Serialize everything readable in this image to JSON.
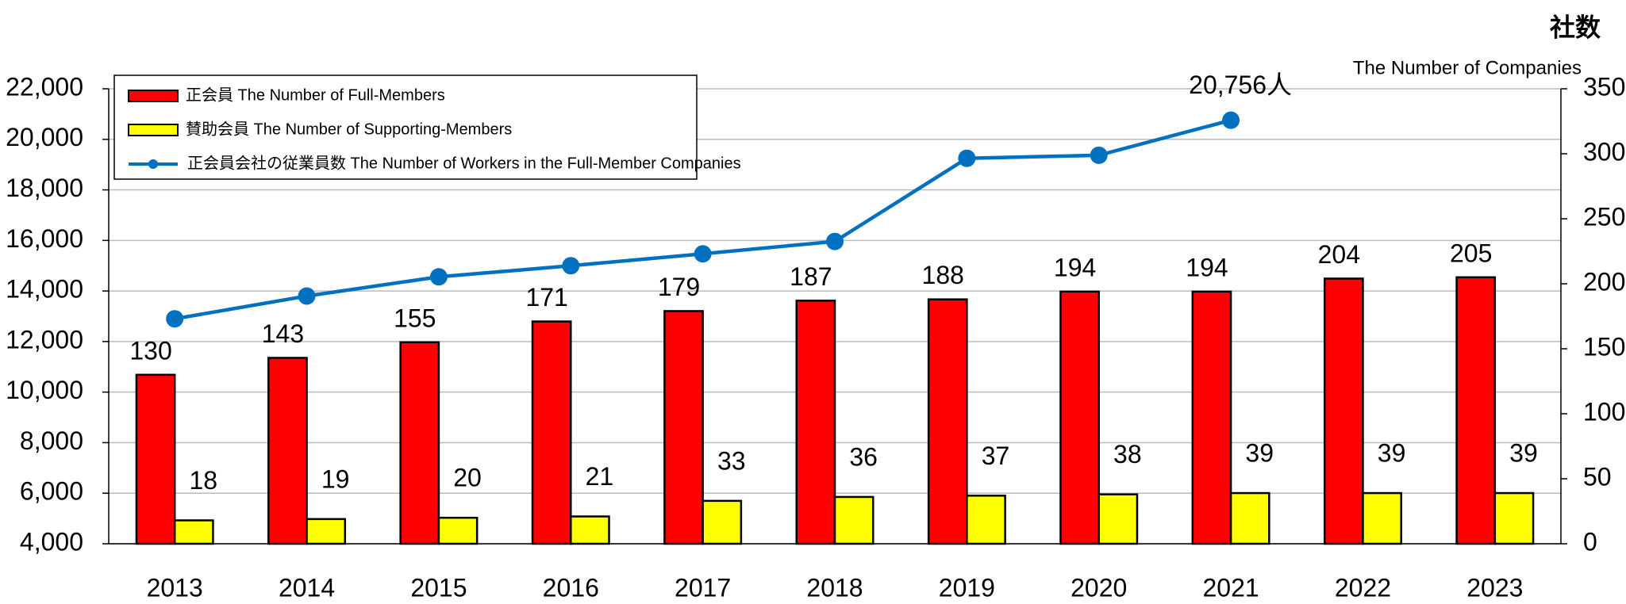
{
  "chart_data": {
    "type": "bar",
    "y2_title": "社数",
    "y2_subtitle": "The Number of Companies",
    "categories": [
      "2013",
      "2014",
      "2015",
      "2016",
      "2017",
      "2018",
      "2019",
      "2020",
      "2021",
      "2022",
      "2023"
    ],
    "series": [
      {
        "name": "正会員 The Number of Full-Members",
        "type": "bar",
        "axis": "y2",
        "color": "#ff0000",
        "values": [
          130,
          143,
          155,
          171,
          179,
          187,
          188,
          194,
          194,
          204,
          205
        ]
      },
      {
        "name": "賛助会員 The Number of Supporting-Members",
        "type": "bar",
        "axis": "y2",
        "color": "#ffff00",
        "values": [
          18,
          19,
          20,
          21,
          33,
          36,
          37,
          38,
          39,
          39,
          39
        ]
      },
      {
        "name": "正会員会社の従業員数 The Number of Workers in the Full-Member Companies",
        "type": "line",
        "color": "#0070c0",
        "values": [
          12900,
          13800,
          14560,
          15000,
          15470,
          15960,
          19250,
          19370,
          20756,
          null,
          null
        ],
        "value_labels": [
          null,
          null,
          null,
          null,
          null,
          null,
          null,
          null,
          "20,756人",
          null,
          null
        ]
      }
    ],
    "ylim": [
      4000,
      22000
    ],
    "yticks": [
      {
        "value": 4000,
        "label": "4,000"
      },
      {
        "value": 6000,
        "label": "6,000"
      },
      {
        "value": 8000,
        "label": "8,000"
      },
      {
        "value": 10000,
        "label": "10,000"
      },
      {
        "value": 12000,
        "label": "12,000"
      },
      {
        "value": 14000,
        "label": "14,000"
      },
      {
        "value": 16000,
        "label": "16,000"
      },
      {
        "value": 18000,
        "label": "18,000"
      },
      {
        "value": 20000,
        "label": "20,000"
      },
      {
        "value": 22000,
        "label": "22,000"
      }
    ],
    "y2lim": [
      0,
      350
    ],
    "y2ticks": [
      0,
      50,
      100,
      150,
      200,
      250,
      300,
      350
    ],
    "grid": true,
    "legend": "top-left"
  }
}
